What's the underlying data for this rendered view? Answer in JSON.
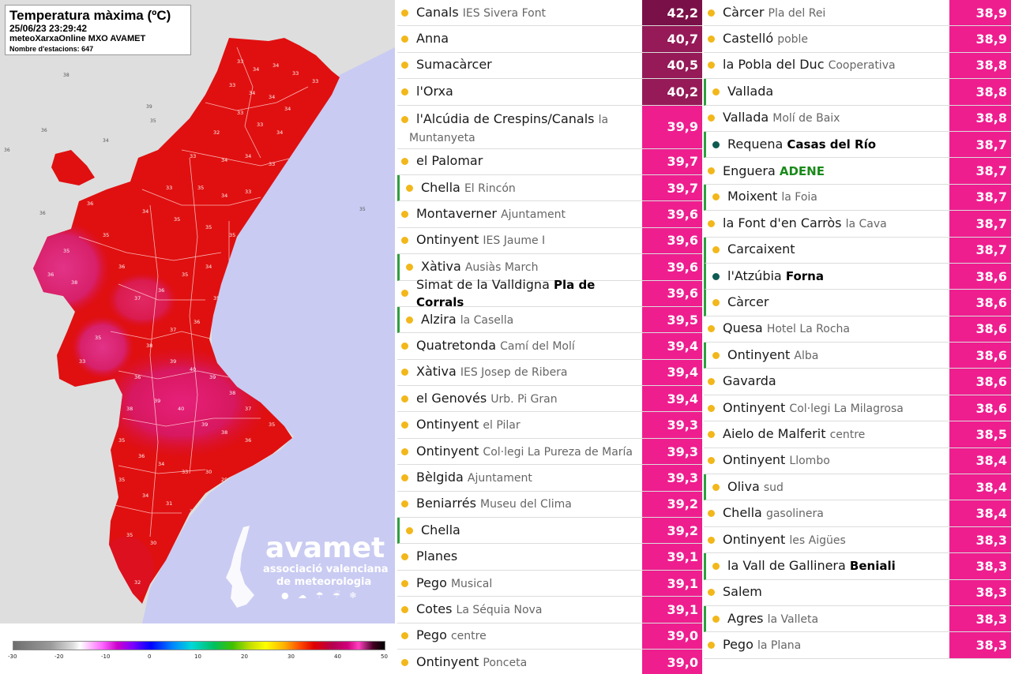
{
  "map": {
    "title": "Temperatura màxima (ºC)",
    "datetime": "25/06/23 23:29:42",
    "source": "meteoXarxaOnline MXO AVAMET",
    "stations": "Nombre d'estacions: 647",
    "logo": {
      "name": "avamet",
      "line1": "associació valenciana",
      "line2": "de meteorologia",
      "icons": "● ☁ ☂ ☔ ❄"
    },
    "scale_labels": [
      "-30",
      "-20",
      "-10",
      "0",
      "10",
      "20",
      "30",
      "40",
      "50"
    ],
    "colors": {
      "sea": "#c9cbf2",
      "land_other": "#dedede",
      "hot": "#e01010",
      "very_hot": "#e6207a"
    }
  },
  "table_left": [
    {
      "name": "Canals",
      "sub": "IES Sivera Font",
      "value": "42,2",
      "dot": "yellow",
      "shade": "dark1"
    },
    {
      "name": "Anna",
      "sub": "",
      "value": "40,7",
      "dot": "yellow",
      "shade": "dark2"
    },
    {
      "name": "Sumacàrcer",
      "sub": "",
      "value": "40,5",
      "dot": "yellow",
      "shade": "dark2"
    },
    {
      "name": "l'Orxa",
      "sub": "",
      "value": "40,2",
      "dot": "yellow",
      "shade": "dark2"
    },
    {
      "name": "l'Alcúdia de Crespins/Canals",
      "sub": "la Muntanyeta",
      "value": "39,9",
      "dot": "yellow",
      "tall": true
    },
    {
      "name": "el Palomar",
      "sub": "",
      "value": "39,7",
      "dot": "yellow"
    },
    {
      "name": "Chella",
      "sub": "El Rincón",
      "value": "39,7",
      "dot": "yellow",
      "marked": true
    },
    {
      "name": "Montaverner",
      "sub": "Ajuntament",
      "value": "39,6",
      "dot": "yellow"
    },
    {
      "name": "Ontinyent",
      "sub": "IES Jaume I",
      "value": "39,6",
      "dot": "yellow"
    },
    {
      "name": "Xàtiva",
      "sub": "Ausiàs March",
      "value": "39,6",
      "dot": "yellow",
      "marked": true
    },
    {
      "name": "Simat de la Valldigna",
      "sub": "Pla de Corrals",
      "sub_style": "bold",
      "value": "39,6",
      "dot": "yellow"
    },
    {
      "name": "Alzira",
      "sub": "la Casella",
      "value": "39,5",
      "dot": "yellow",
      "marked": true
    },
    {
      "name": "Quatretonda",
      "sub": "Camí del Molí",
      "value": "39,4",
      "dot": "yellow"
    },
    {
      "name": "Xàtiva",
      "sub": "IES Josep de Ribera",
      "value": "39,4",
      "dot": "yellow"
    },
    {
      "name": "el Genovés",
      "sub": "Urb. Pi Gran",
      "value": "39,4",
      "dot": "yellow"
    },
    {
      "name": "Ontinyent",
      "sub": "el Pilar",
      "value": "39,3",
      "dot": "yellow"
    },
    {
      "name": "Ontinyent",
      "sub": "Col·legi La Pureza de María",
      "value": "39,3",
      "dot": "yellow"
    },
    {
      "name": "Bèlgida",
      "sub": "Ajuntament",
      "value": "39,3",
      "dot": "yellow"
    },
    {
      "name": "Beniarrés",
      "sub": "Museu del Clima",
      "value": "39,2",
      "dot": "yellow"
    },
    {
      "name": "Chella",
      "sub": "",
      "value": "39,2",
      "dot": "yellow",
      "marked": true
    },
    {
      "name": "Planes",
      "sub": "",
      "value": "39,1",
      "dot": "yellow"
    },
    {
      "name": "Pego",
      "sub": "Musical",
      "value": "39,1",
      "dot": "yellow"
    },
    {
      "name": "Cotes",
      "sub": "La Séquia Nova",
      "value": "39,1",
      "dot": "yellow"
    },
    {
      "name": "Pego",
      "sub": "centre",
      "value": "39,0",
      "dot": "yellow"
    },
    {
      "name": "Ontinyent",
      "sub": "Ponceta",
      "value": "39,0",
      "dot": "yellow"
    }
  ],
  "table_right": [
    {
      "name": "Càrcer",
      "sub": "Pla del Rei",
      "value": "38,9",
      "dot": "yellow"
    },
    {
      "name": "Castelló",
      "sub": "poble",
      "value": "38,9",
      "dot": "yellow"
    },
    {
      "name": "la Pobla del Duc",
      "sub": "Cooperativa",
      "value": "38,8",
      "dot": "yellow"
    },
    {
      "name": "Vallada",
      "sub": "",
      "value": "38,8",
      "dot": "yellow",
      "marked": true
    },
    {
      "name": "Vallada",
      "sub": "Molí de Baix",
      "value": "38,8",
      "dot": "yellow"
    },
    {
      "name": "Requena",
      "sub": "Casas del Río",
      "sub_style": "bold",
      "value": "38,7",
      "dot": "teal",
      "marked": true
    },
    {
      "name": "Enguera",
      "sub": "ADENE",
      "sub_style": "green",
      "value": "38,7",
      "dot": "yellow"
    },
    {
      "name": "Moixent",
      "sub": "la Foia",
      "value": "38,7",
      "dot": "yellow",
      "marked": true
    },
    {
      "name": "la Font d'en Carròs",
      "sub": "la Cava",
      "value": "38,7",
      "dot": "yellow"
    },
    {
      "name": "Carcaixent",
      "sub": "",
      "value": "38,7",
      "dot": "yellow",
      "marked": true
    },
    {
      "name": "l'Atzúbia",
      "sub": "Forna",
      "sub_style": "bold",
      "value": "38,6",
      "dot": "teal",
      "marked": true
    },
    {
      "name": "Càrcer",
      "sub": "",
      "value": "38,6",
      "dot": "yellow",
      "marked": true
    },
    {
      "name": "Quesa",
      "sub": "Hotel La Rocha",
      "value": "38,6",
      "dot": "yellow"
    },
    {
      "name": "Ontinyent",
      "sub": "Alba",
      "value": "38,6",
      "dot": "yellow",
      "marked": true
    },
    {
      "name": "Gavarda",
      "sub": "",
      "value": "38,6",
      "dot": "yellow"
    },
    {
      "name": "Ontinyent",
      "sub": "Col·legi La Milagrosa",
      "value": "38,6",
      "dot": "yellow"
    },
    {
      "name": "Aielo de Malferit",
      "sub": "centre",
      "value": "38,5",
      "dot": "yellow"
    },
    {
      "name": "Ontinyent",
      "sub": "Llombo",
      "value": "38,4",
      "dot": "yellow"
    },
    {
      "name": "Oliva",
      "sub": "sud",
      "value": "38,4",
      "dot": "yellow",
      "marked": true
    },
    {
      "name": "Chella",
      "sub": "gasolinera",
      "value": "38,4",
      "dot": "yellow"
    },
    {
      "name": "Ontinyent",
      "sub": "les Aigües",
      "value": "38,3",
      "dot": "yellow"
    },
    {
      "name": "la Vall de Gallinera",
      "sub": "Beniali",
      "sub_style": "bold",
      "value": "38,3",
      "dot": "yellow",
      "marked": true
    },
    {
      "name": "Salem",
      "sub": "",
      "value": "38,3",
      "dot": "yellow"
    },
    {
      "name": "Agres",
      "sub": "la Valleta",
      "value": "38,3",
      "dot": "yellow",
      "marked": true
    },
    {
      "name": "Pego",
      "sub": "la Plana",
      "value": "38,3",
      "dot": "yellow"
    }
  ]
}
